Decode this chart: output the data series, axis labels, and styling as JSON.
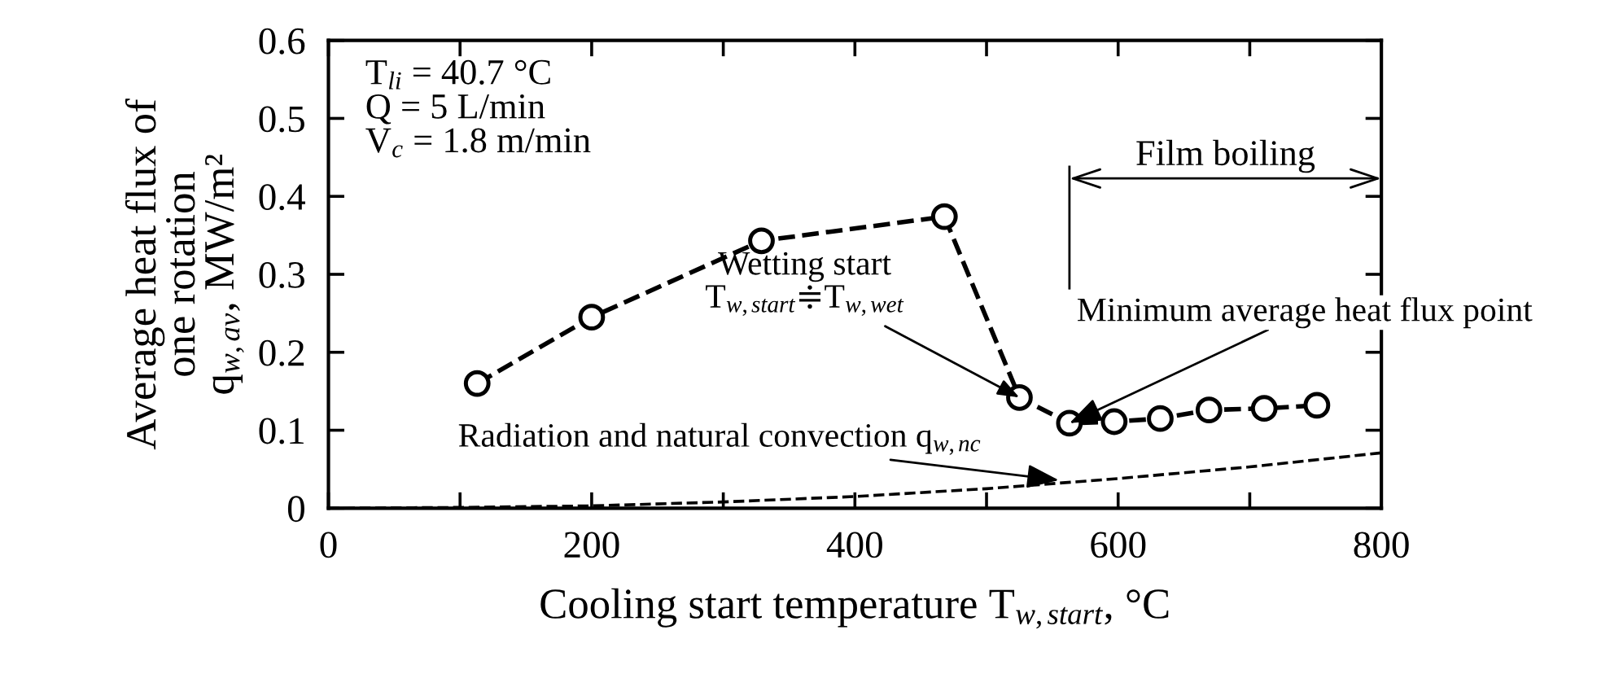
{
  "chart_data": {
    "type": "line",
    "xlabel": "Cooling start temperature T$_{w,start}$, °C",
    "ylabel": "Average heat flux of\none rotation\nq$_{w,av}$, MW/m²",
    "series": [
      {
        "x": [
          113,
          200,
          329,
          468,
          525,
          563,
          597,
          632,
          669,
          711,
          751
        ],
        "values": [
          0.16,
          0.245,
          0.343,
          0.374,
          0.142,
          0.109,
          0.111,
          0.115,
          0.126,
          0.128,
          0.132
        ],
        "color": "#000000",
        "marker": "circle",
        "line_style": "dashed"
      },
      {
        "x": [
          0,
          100,
          200,
          300,
          400,
          500,
          600,
          700,
          800
        ],
        "values": [
          0.0,
          0.001,
          0.003,
          0.008,
          0.015,
          0.025,
          0.038,
          0.053,
          0.071
        ],
        "color": "#000000",
        "marker": "none",
        "line_style": "dashed"
      }
    ],
    "xlim": [
      0,
      800
    ],
    "ylim": [
      0,
      0.6
    ],
    "xticks": [
      0,
      {
        "value": 100,
        "label": null
      },
      200,
      {
        "value": 300,
        "label": null
      },
      400,
      {
        "value": 500,
        "label": null
      },
      600,
      {
        "value": 700,
        "label": null
      },
      800
    ],
    "yticks": [
      0,
      0.1,
      0.2,
      0.3,
      0.4,
      0.5,
      0.6
    ],
    "grid": false,
    "legend": false,
    "ref_lines": [
      {
        "axis": "x",
        "value": 563,
        "label": "Film boiling"
      }
    ],
    "annotations": [
      "T$_{li}$ = 40.7 °C\nQ = 5 L/min\nV$_{c}$ = 1.8 m/min",
      {
        "text": "Wetting start\nT$_{w,start}$≑T$_{w,wet}$",
        "x": 525,
        "y": 0.142
      },
      {
        "text": "Minimum average heat flux point",
        "x": 563,
        "y": 0.109
      },
      {
        "text": "Radiation and natural convection q$_{w,nc}$",
        "x": 555,
        "y": 0.036
      }
    ]
  }
}
